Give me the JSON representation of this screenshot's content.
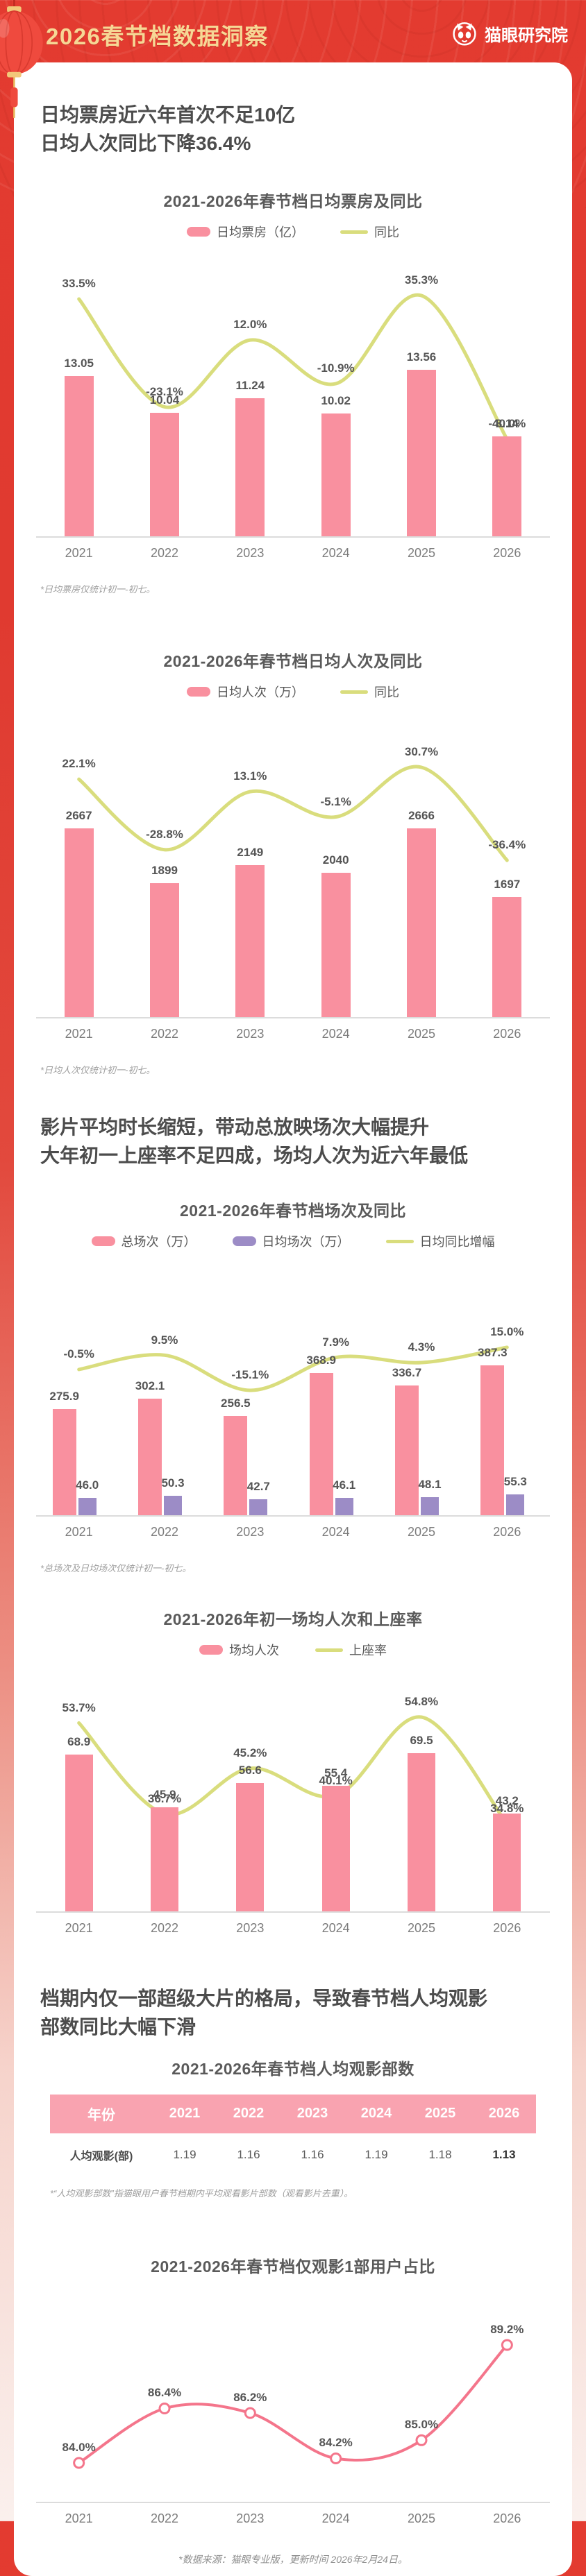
{
  "header": {
    "title": "2026春节档数据洞察",
    "brand": "猫眼研究院"
  },
  "sections": [
    {
      "lines": [
        "日均票房近六年首次不足10亿",
        "日均人次同比下降36.4%"
      ]
    },
    {
      "lines": [
        "影片平均时长缩短，带动总放映场次大幅提升",
        "大年初一上座率不足四成，场均人次为近六年最低"
      ]
    },
    {
      "lines": [
        "档期内仅一部超级大片的格局，导致春节档人均观影",
        "部数同比大幅下滑"
      ]
    }
  ],
  "chart_data": [
    {
      "id": "daily-box-office",
      "type": "bar+line",
      "title": "2021-2026年春节档日均票房及同比",
      "categories": [
        "2021",
        "2022",
        "2023",
        "2024",
        "2025",
        "2026"
      ],
      "series": [
        {
          "name": "日均票房（亿）",
          "type": "bar",
          "color": "#F9909F",
          "values": [
            13.05,
            10.04,
            11.24,
            10.02,
            13.56,
            8.14
          ],
          "labels": [
            "13.05",
            "10.04",
            "11.24",
            "10.02",
            "13.56",
            "8.14"
          ]
        },
        {
          "name": "同比",
          "type": "line",
          "color": "#D9DD7D",
          "values": [
            33.5,
            -23.1,
            12.0,
            -10.9,
            35.3,
            -40.0
          ],
          "labels": [
            "33.5%",
            "-23.1%",
            "12.0%",
            "-10.9%",
            "35.3%",
            "-40.0%"
          ]
        }
      ],
      "footnote": "*日均票房仅统计初一-初七。"
    },
    {
      "id": "daily-admissions",
      "type": "bar+line",
      "title": "2021-2026年春节档日均人次及同比",
      "categories": [
        "2021",
        "2022",
        "2023",
        "2024",
        "2025",
        "2026"
      ],
      "series": [
        {
          "name": "日均人次（万）",
          "type": "bar",
          "color": "#F9909F",
          "values": [
            2667,
            1899,
            2149,
            2040,
            2666,
            1697
          ],
          "labels": [
            "2667",
            "1899",
            "2149",
            "2040",
            "2666",
            "1697"
          ]
        },
        {
          "name": "同比",
          "type": "line",
          "color": "#D9DD7D",
          "values": [
            22.1,
            -28.8,
            13.1,
            -5.1,
            30.7,
            -36.4
          ],
          "labels": [
            "22.1%",
            "-28.8%",
            "13.1%",
            "-5.1%",
            "30.7%",
            "-36.4%"
          ]
        }
      ],
      "footnote": "*日均人次仅统计初一-初七。"
    },
    {
      "id": "showings",
      "type": "bar+line",
      "title": "2021-2026年春节档场次及同比",
      "categories": [
        "2021",
        "2022",
        "2023",
        "2024",
        "2025",
        "2026"
      ],
      "series": [
        {
          "name": "总场次（万）",
          "type": "bar",
          "color": "#F9909F",
          "values": [
            275.9,
            302.1,
            256.5,
            368.9,
            336.7,
            387.3
          ],
          "labels": [
            "275.9",
            "302.1",
            "256.5",
            "368.9",
            "336.7",
            "387.3"
          ]
        },
        {
          "name": "日均场次（万）",
          "type": "bar",
          "color": "#9C8CC6",
          "values": [
            46.0,
            50.3,
            42.7,
            46.1,
            48.1,
            55.3
          ],
          "labels": [
            "46.0",
            "50.3",
            "42.7",
            "46.1",
            "48.1",
            "55.3"
          ]
        },
        {
          "name": "日均同比增幅",
          "type": "line",
          "color": "#D9DD7D",
          "values": [
            -0.5,
            9.5,
            -15.1,
            7.9,
            4.3,
            15.0
          ],
          "labels": [
            "-0.5%",
            "9.5%",
            "-15.1%",
            "7.9%",
            "4.3%",
            "15.0%"
          ]
        }
      ],
      "footnote": "*总场次及日均场次仅统计初一-初七。"
    },
    {
      "id": "per-show-attendance",
      "type": "bar+line",
      "title": "2021-2026年初一场均人次和上座率",
      "categories": [
        "2021",
        "2022",
        "2023",
        "2024",
        "2025",
        "2026"
      ],
      "series": [
        {
          "name": "场均人次",
          "type": "bar",
          "color": "#F9909F",
          "values": [
            68.9,
            45.9,
            56.6,
            55.4,
            69.5,
            43.2
          ],
          "labels": [
            "68.9",
            "45.9",
            "56.6",
            "55.4",
            "69.5",
            "43.2"
          ]
        },
        {
          "name": "上座率",
          "type": "line",
          "color": "#D9DD7D",
          "values": [
            53.7,
            36.7,
            45.2,
            40.1,
            54.8,
            34.8
          ],
          "labels": [
            "53.7%",
            "36.7%",
            "45.2%",
            "40.1%",
            "54.8%",
            "34.8%"
          ]
        }
      ]
    },
    {
      "id": "films-per-viewer",
      "type": "table",
      "title": "2021-2026年春节档人均观影部数",
      "header": [
        "年份",
        "2021",
        "2022",
        "2023",
        "2024",
        "2025",
        "2026"
      ],
      "rows": [
        {
          "label": "人均观影(部)",
          "values": [
            "1.19",
            "1.16",
            "1.16",
            "1.19",
            "1.18",
            "1.13"
          ],
          "highlight_last": true
        }
      ],
      "header_bg": "#F9A3B0",
      "footnote": "*“人均观影部数”指猫眼用户春节档期内平均观看影片部数（观看影片去重）。"
    },
    {
      "id": "single-film-share",
      "type": "line",
      "title": "2021-2026年春节档仅观影1部用户占比",
      "categories": [
        "2021",
        "2022",
        "2023",
        "2024",
        "2025",
        "2026"
      ],
      "series": [
        {
          "name": "仅观影1部用户占比",
          "type": "line",
          "color": "#F4758B",
          "markers": true,
          "values": [
            84.0,
            86.4,
            86.2,
            84.2,
            85.0,
            89.2
          ],
          "labels": [
            "84.0%",
            "86.4%",
            "86.2%",
            "84.2%",
            "85.0%",
            "89.2%"
          ]
        }
      ]
    }
  ],
  "footer": {
    "note": "*数据来源：猫眼专业版，更新时间 2026年2月24日。"
  },
  "colors": {
    "accent_red": "#E23B30",
    "bar_pink": "#F9909F",
    "line_yellow": "#D9DD7D",
    "bar_purple": "#9C8CC6",
    "line_pink": "#F4758B",
    "table_header_pink": "#F9A3B0",
    "gold": "#F6D795"
  }
}
